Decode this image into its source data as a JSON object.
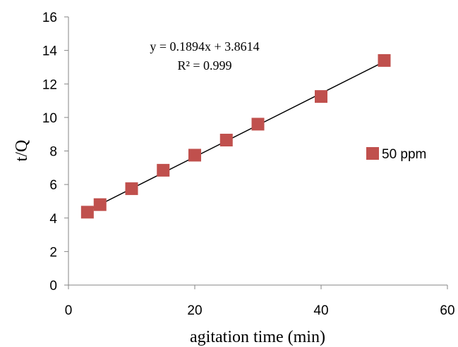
{
  "chart_data": {
    "type": "scatter",
    "xlabel": "agitation time (min)",
    "ylabel": "t/Q",
    "xlim": [
      0,
      60
    ],
    "ylim": [
      0,
      16
    ],
    "xticks": [
      0,
      20,
      40,
      60
    ],
    "yticks": [
      0,
      2,
      4,
      6,
      8,
      10,
      12,
      14,
      16
    ],
    "grid": false,
    "legend_position": "right",
    "series": [
      {
        "name": "50 ppm",
        "color": "#C0504D",
        "marker": "square",
        "x": [
          3,
          5,
          10,
          15,
          20,
          25,
          30,
          40,
          50
        ],
        "y": [
          4.35,
          4.8,
          5.75,
          6.85,
          7.75,
          8.65,
          9.6,
          11.25,
          13.4
        ]
      }
    ],
    "trendline": {
      "type": "linear",
      "slope": 0.1894,
      "intercept": 3.8614,
      "x_range": [
        3,
        50
      ],
      "color": "#000000",
      "equation_text": "y = 0.1894x + 3.8614",
      "r2_text": "R² = 0.999"
    }
  }
}
